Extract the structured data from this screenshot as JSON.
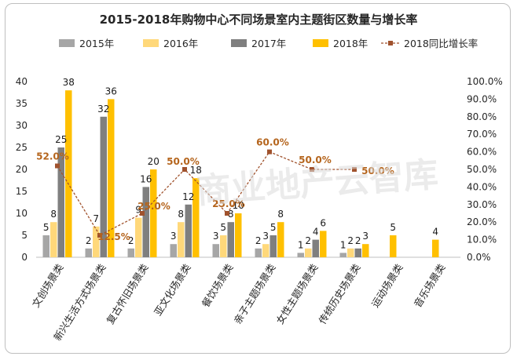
{
  "chart_data": {
    "type": "bar",
    "title": "2015-2018年购物中心不同场景室内主题街区数量与增长率",
    "categories": [
      "文创场景类",
      "新兴生活方式场景类",
      "复古怀旧场景类",
      "亚文化场景类",
      "餐饮场景类",
      "亲子主题场景类",
      "女性主题场景类",
      "传统历史场景类",
      "运动场景类",
      "音乐场景类"
    ],
    "series": [
      {
        "name": "2015年",
        "color": "#a6a6a6",
        "values": [
          5,
          2,
          2,
          3,
          3,
          2,
          1,
          1,
          null,
          null
        ]
      },
      {
        "name": "2016年",
        "color": "#ffd87a",
        "values": [
          8,
          7,
          9,
          8,
          5,
          3,
          2,
          2,
          null,
          null
        ]
      },
      {
        "name": "2017年",
        "color": "#7f7f7f",
        "values": [
          25,
          32,
          16,
          12,
          8,
          5,
          4,
          2,
          null,
          null
        ]
      },
      {
        "name": "2018年",
        "color": "#ffc000",
        "values": [
          38,
          36,
          20,
          18,
          10,
          8,
          6,
          3,
          5,
          4
        ]
      }
    ],
    "line_series": {
      "name": "2018同比增长率",
      "color": "#a0522d",
      "values": [
        52.0,
        12.5,
        25.0,
        50.0,
        25.0,
        60.0,
        50.0,
        50.0,
        null,
        null
      ],
      "labels": [
        "52.0%",
        "12.5%",
        "25.0%",
        "50.0%",
        "25.0%",
        "60.0%",
        "50.0%",
        "50.0%",
        "",
        ""
      ]
    },
    "ylim": [
      0,
      40
    ],
    "yticks": [
      0,
      5,
      10,
      15,
      20,
      25,
      30,
      35,
      40
    ],
    "y2lim": [
      0,
      100
    ],
    "y2ticks": [
      "0.0%",
      "10.0%",
      "20.0%",
      "30.0%",
      "40.0%",
      "50.0%",
      "60.0%",
      "70.0%",
      "80.0%",
      "90.0%",
      "100.0%"
    ],
    "legend": "top"
  },
  "watermark": "商业地产云智库"
}
